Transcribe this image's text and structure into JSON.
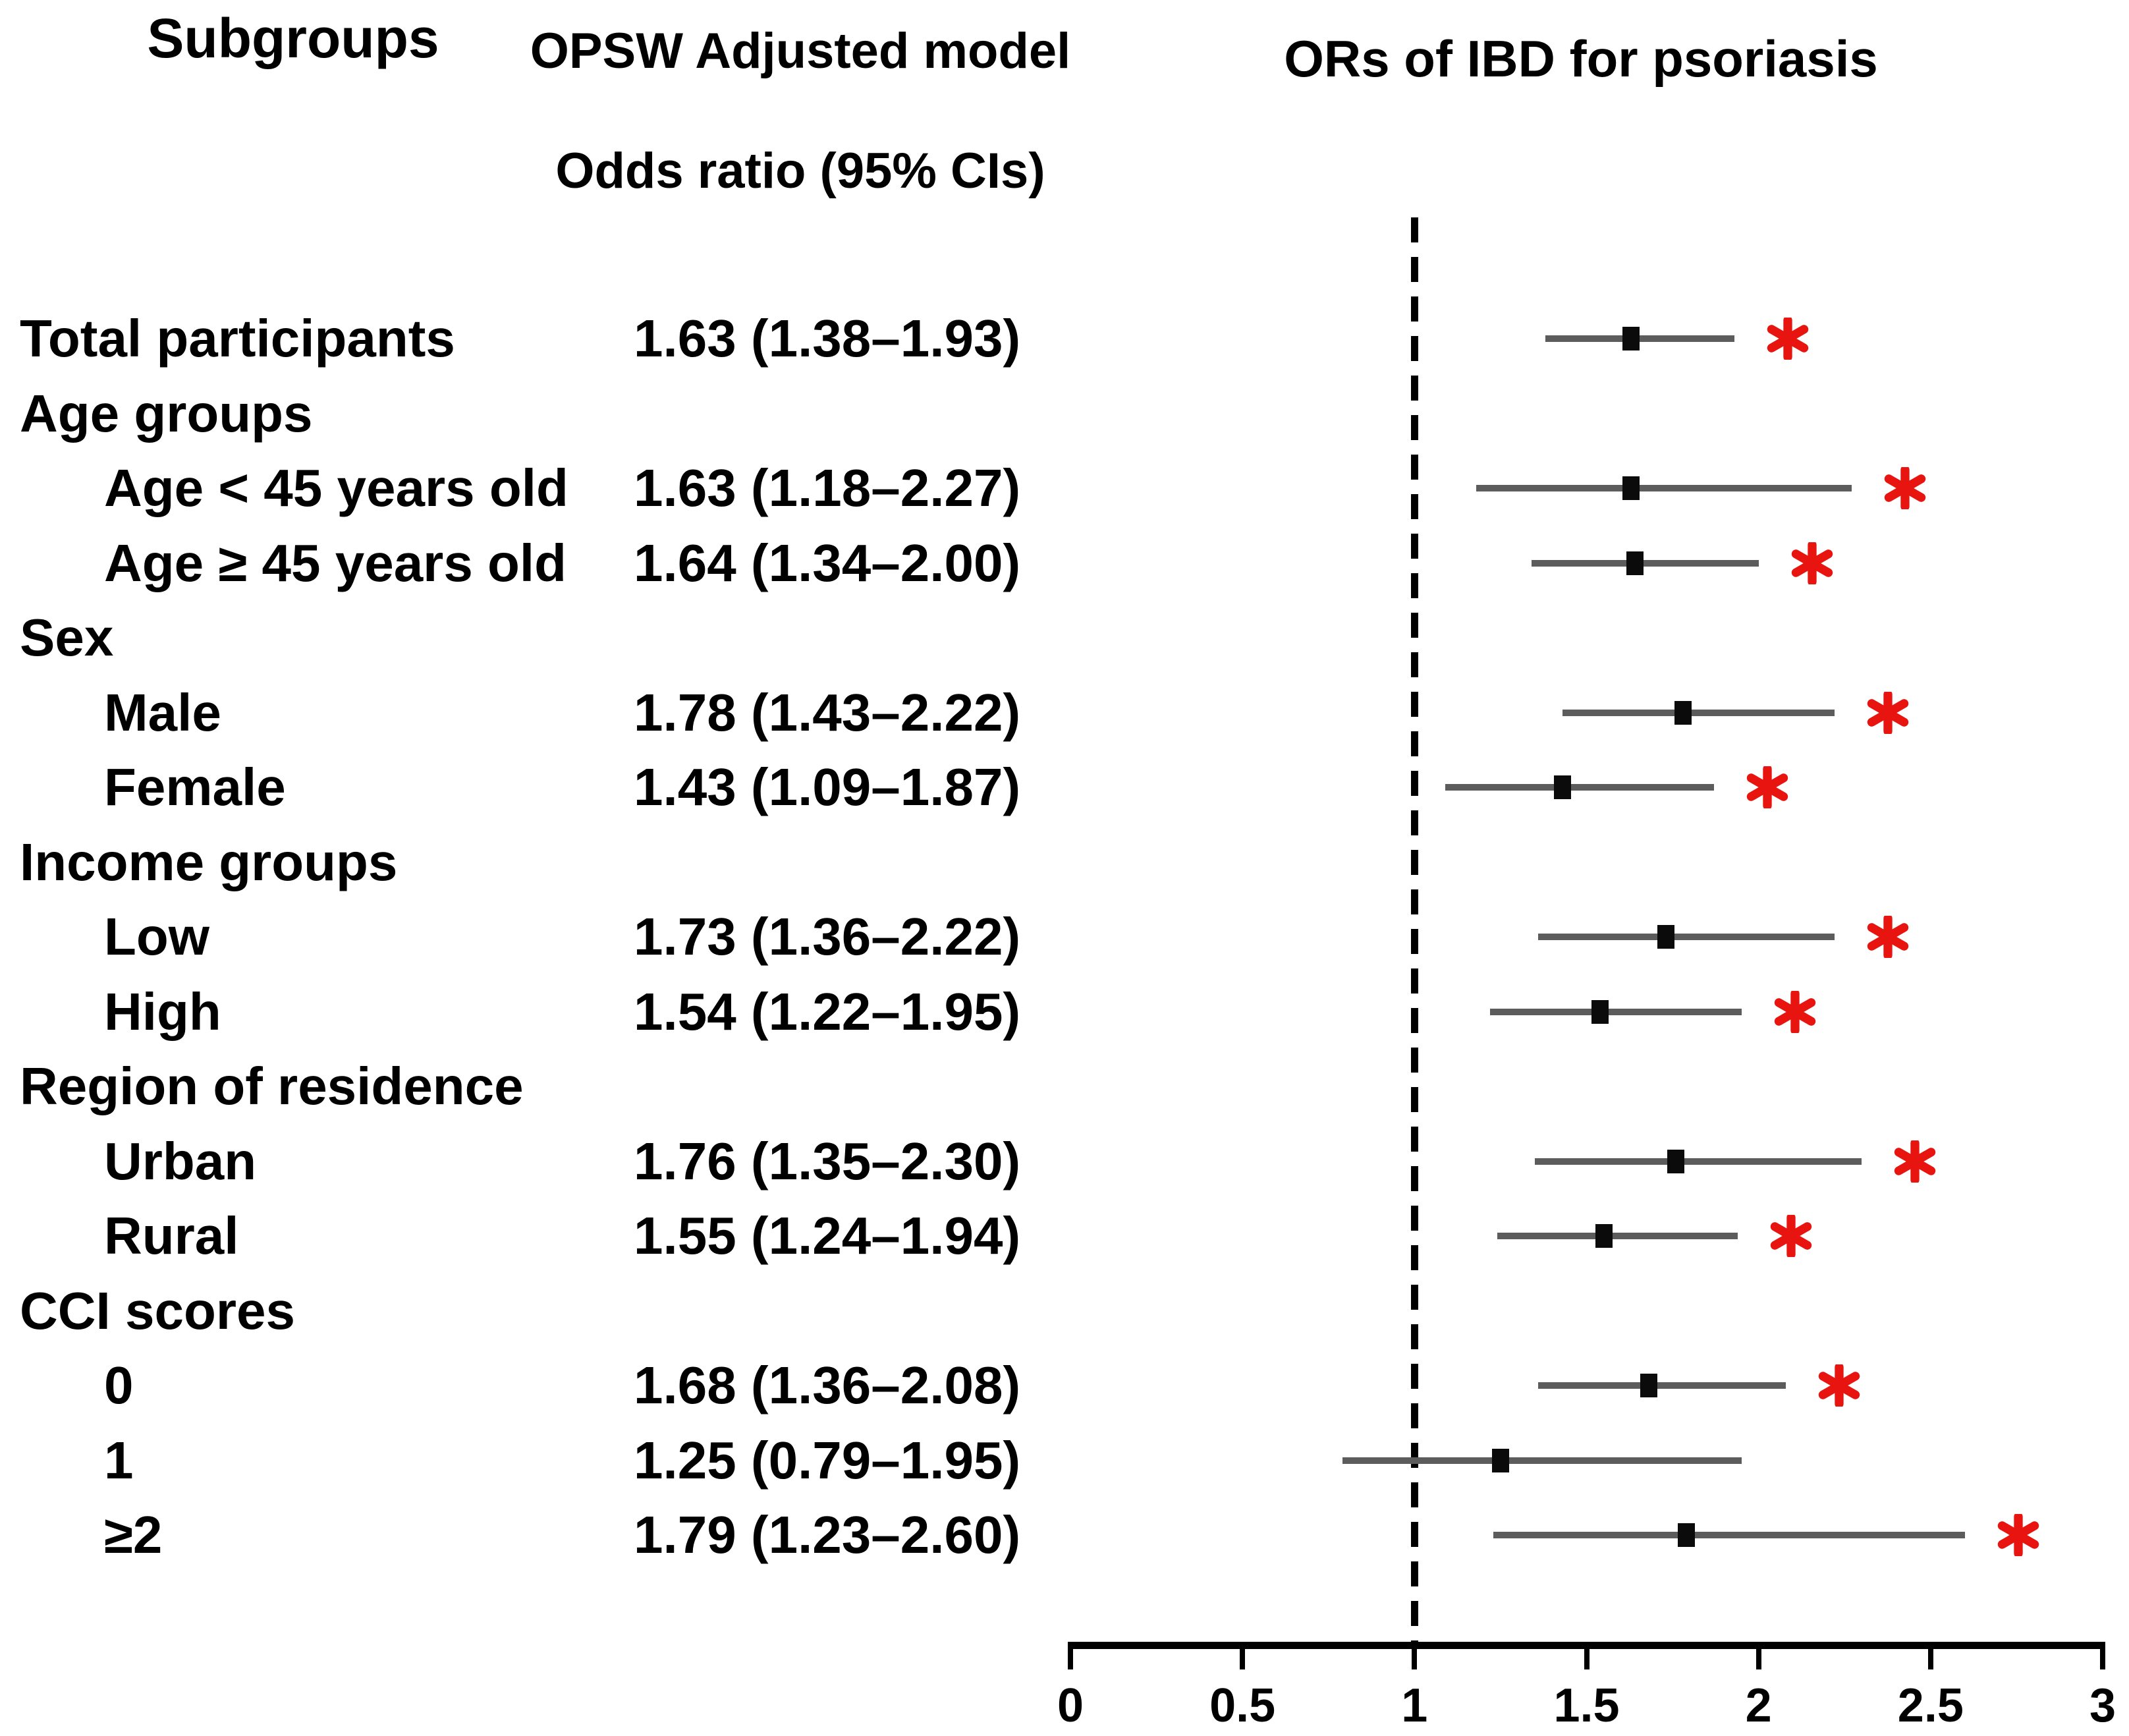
{
  "header": {
    "subgroups": "Subgroups",
    "model_line1": "OPSW Adjusted model",
    "model_line2": "Odds ratio (95% CIs)",
    "plot_title": "ORs of IBD for psoriasis"
  },
  "colors": {
    "text": "#000000",
    "axis": "#000000",
    "ci_line": "#5c5c5c",
    "marker": "#0b0b0b",
    "asterisk": "#e71410"
  },
  "chart_data": {
    "type": "forest",
    "title": "ORs of IBD for psoriasis",
    "xlim": [
      0,
      3
    ],
    "x_ticks": [
      0,
      0.5,
      1,
      1.5,
      2,
      2.5,
      3
    ],
    "reference_line": 1,
    "significance_symbol": "*",
    "rows": [
      {
        "label": "Total participants",
        "indent": false,
        "header": false,
        "or": 1.63,
        "lo": 1.38,
        "hi": 1.93,
        "text": "1.63 (1.38–1.93)",
        "significant": true
      },
      {
        "label": "Age groups",
        "indent": false,
        "header": true
      },
      {
        "label": "Age < 45 years old",
        "indent": true,
        "header": false,
        "or": 1.63,
        "lo": 1.18,
        "hi": 2.27,
        "text": "1.63 (1.18–2.27)",
        "significant": true
      },
      {
        "label": "Age ≥ 45 years old",
        "indent": true,
        "header": false,
        "or": 1.64,
        "lo": 1.34,
        "hi": 2.0,
        "text": "1.64 (1.34–2.00)",
        "significant": true
      },
      {
        "label": "Sex",
        "indent": false,
        "header": true
      },
      {
        "label": "Male",
        "indent": true,
        "header": false,
        "or": 1.78,
        "lo": 1.43,
        "hi": 2.22,
        "text": "1.78 (1.43–2.22)",
        "significant": true
      },
      {
        "label": "Female",
        "indent": true,
        "header": false,
        "or": 1.43,
        "lo": 1.09,
        "hi": 1.87,
        "text": "1.43 (1.09–1.87)",
        "significant": true
      },
      {
        "label": "Income groups",
        "indent": false,
        "header": true
      },
      {
        "label": "Low",
        "indent": true,
        "header": false,
        "or": 1.73,
        "lo": 1.36,
        "hi": 2.22,
        "text": "1.73 (1.36–2.22)",
        "significant": true
      },
      {
        "label": "High",
        "indent": true,
        "header": false,
        "or": 1.54,
        "lo": 1.22,
        "hi": 1.95,
        "text": "1.54 (1.22–1.95)",
        "significant": true
      },
      {
        "label": "Region of residence",
        "indent": false,
        "header": true
      },
      {
        "label": "Urban",
        "indent": true,
        "header": false,
        "or": 1.76,
        "lo": 1.35,
        "hi": 2.3,
        "text": "1.76 (1.35–2.30)",
        "significant": true
      },
      {
        "label": "Rural",
        "indent": true,
        "header": false,
        "or": 1.55,
        "lo": 1.24,
        "hi": 1.94,
        "text": "1.55 (1.24–1.94)",
        "significant": true
      },
      {
        "label": "CCI scores",
        "indent": false,
        "header": true
      },
      {
        "label": "0",
        "indent": true,
        "header": false,
        "or": 1.68,
        "lo": 1.36,
        "hi": 2.08,
        "text": "1.68 (1.36–2.08)",
        "significant": true
      },
      {
        "label": "1",
        "indent": true,
        "header": false,
        "or": 1.25,
        "lo": 0.79,
        "hi": 1.95,
        "text": "1.25 (0.79–1.95)",
        "significant": false
      },
      {
        "label": "≥2",
        "indent": true,
        "header": false,
        "or": 1.79,
        "lo": 1.23,
        "hi": 2.6,
        "text": "1.79 (1.23–2.60)",
        "significant": true
      }
    ]
  }
}
